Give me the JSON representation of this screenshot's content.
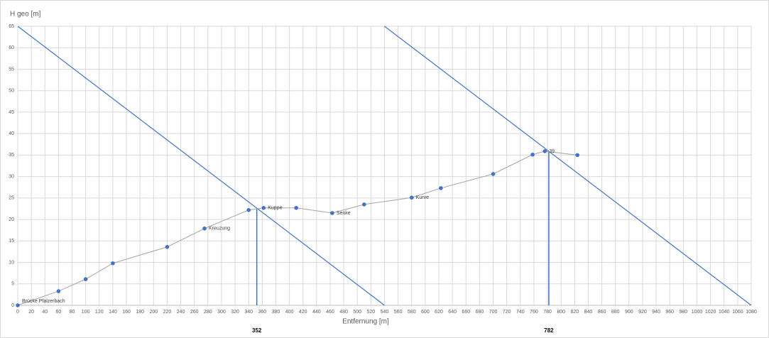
{
  "chart_data": {
    "type": "scatter",
    "y_axis_title": "H geo [m]",
    "x_axis_title": "Entfernung [m]",
    "x": [
      0,
      60,
      100,
      140,
      220,
      275,
      340,
      362,
      410,
      463,
      510,
      580,
      623,
      700,
      758,
      776,
      824
    ],
    "values": [
      0,
      3.3,
      6.1,
      9.8,
      13.6,
      17.9,
      22.2,
      22.7,
      22.7,
      21.5,
      23.5,
      25.1,
      27.3,
      30.6,
      35.1,
      35.9,
      35.0
    ],
    "point_labels": [
      "Brücke Pfalzerbach",
      null,
      null,
      null,
      null,
      "Kreuzung",
      null,
      "Kuppe",
      null,
      "Senke",
      null,
      "Kurve",
      null,
      null,
      null,
      "39",
      null
    ],
    "color": "#4472c4",
    "line_color": "#a5a5a5",
    "lines": [
      {
        "x": [
          0,
          540
        ],
        "values": [
          65,
          0
        ]
      },
      {
        "x": [
          540,
          1080
        ],
        "values": [
          65,
          0
        ]
      }
    ],
    "vlines": [
      {
        "x": 352,
        "top": 22.6
      },
      {
        "x": 782,
        "top": 35.9
      }
    ],
    "xlim": [
      0,
      1080
    ],
    "ylim": [
      0,
      65
    ],
    "xticks": [
      0,
      20,
      40,
      60,
      80,
      100,
      120,
      140,
      160,
      180,
      200,
      220,
      240,
      260,
      280,
      300,
      320,
      340,
      360,
      380,
      400,
      420,
      440,
      460,
      480,
      500,
      520,
      540,
      560,
      580,
      600,
      620,
      640,
      660,
      680,
      700,
      720,
      740,
      760,
      780,
      800,
      820,
      840,
      860,
      880,
      900,
      920,
      940,
      960,
      980,
      1000,
      1020,
      1040,
      1060,
      1080
    ],
    "yticks": [
      0,
      5,
      10,
      15,
      20,
      25,
      30,
      35,
      40,
      45,
      50,
      55,
      60,
      65
    ],
    "grid": true
  }
}
